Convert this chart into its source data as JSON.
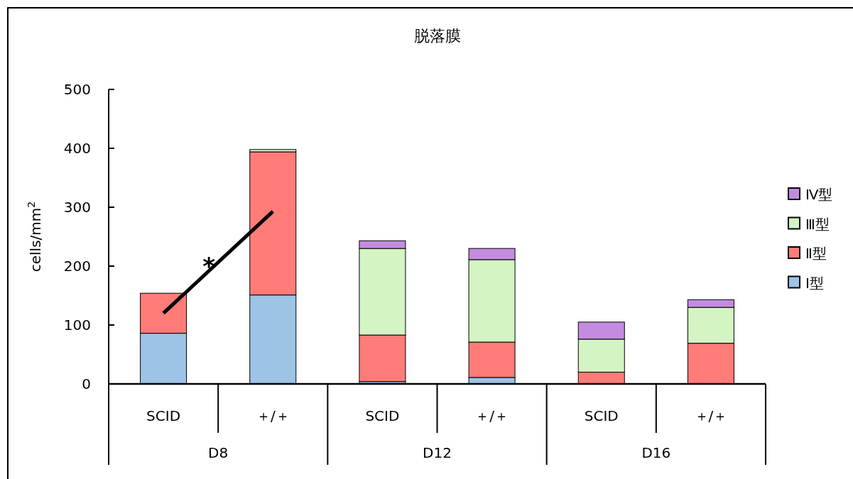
{
  "chart_data": {
    "type": "bar",
    "stacked": true,
    "title": "脱落膜",
    "ylabel": "cells/mm$^{2}$",
    "categories": [
      "SCID",
      "＋/＋",
      "SCID",
      "＋/＋",
      "SCID",
      "＋/＋"
    ],
    "annotations": [
      "D8",
      "D12",
      "D16",
      "*"
    ],
    "series": [
      {
        "name": "Ⅰ型",
        "color": "#9dc3e6",
        "values": [
          86,
          151,
          4,
          11,
          0,
          0
        ]
      },
      {
        "name": "Ⅱ型",
        "color": "#ff7c78",
        "values": [
          68,
          243,
          79,
          60,
          20,
          69
        ]
      },
      {
        "name": "Ⅲ型",
        "color": "#d3f4c3",
        "values": [
          0,
          4,
          147,
          140,
          56,
          61
        ]
      },
      {
        "name": "Ⅳ型",
        "color": "#c38ce0",
        "values": [
          0,
          0,
          13,
          19,
          29,
          13
        ]
      },
      {
        "type": "line",
        "color": "#000000",
        "values": [
          120,
          293,
          null,
          null,
          null,
          null
        ]
      }
    ],
    "ylim": [
      0,
      500
    ],
    "yticks": [
      0,
      100,
      200,
      300,
      400,
      500
    ],
    "legend": "right"
  }
}
